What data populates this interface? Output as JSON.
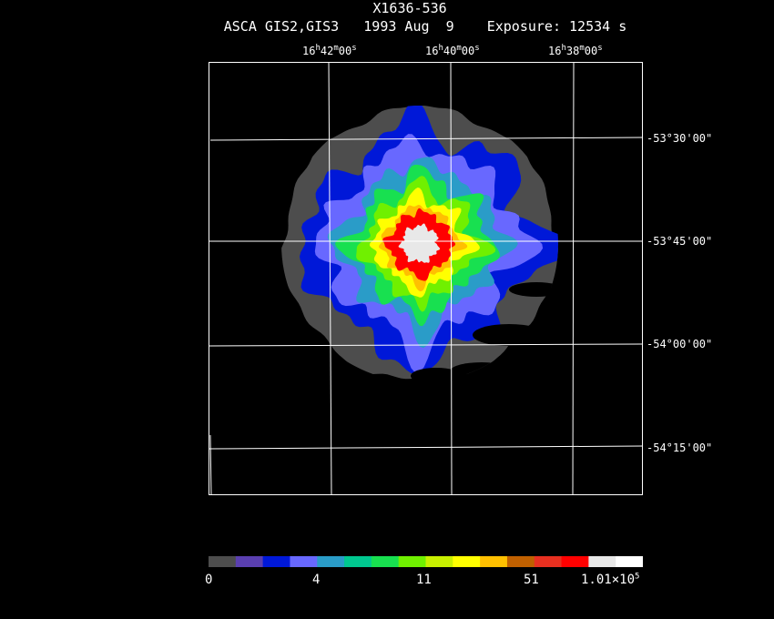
{
  "header": {
    "title": "X1636-536",
    "subtitle": "ASCA GIS2,GIS3   1993 Aug  9    Exposure: 12534 s"
  },
  "ra_labels": [
    {
      "h": "16",
      "m": "42",
      "s": "00"
    },
    {
      "h": "16",
      "m": "40",
      "s": "00"
    },
    {
      "h": "16",
      "m": "38",
      "s": "00"
    }
  ],
  "dec_labels": [
    "-53°30'00\"",
    "-53°45'00\"",
    "-54°00'00\"",
    "-54°15'00\""
  ],
  "colorbar": {
    "colors": [
      "#4d4d4d",
      "#5a3fb0",
      "#0018d8",
      "#6868ff",
      "#2a9cc8",
      "#00c890",
      "#18e050",
      "#70f000",
      "#c8f000",
      "#ffff00",
      "#ffc000",
      "#c06000",
      "#e83020",
      "#ff0000",
      "#e8e8e8",
      "#ffffff"
    ],
    "labels": [
      {
        "text": "0"
      },
      {
        "text": "4"
      },
      {
        "text": "11"
      },
      {
        "text": "51"
      },
      {
        "mantissa": "1.01×10",
        "exponent": "5"
      }
    ]
  },
  "image_colors": {
    "background": "#000000",
    "grid": "#ffffff",
    "dim": "#4d4d4d",
    "blue": "#0018d8",
    "lightblue": "#6868ff",
    "cyan": "#2a9cc8",
    "green": "#18e050",
    "lime": "#70f000",
    "yellow": "#ffff00",
    "orange": "#ffc000",
    "red": "#ff0000",
    "core": "#e8e8e8"
  }
}
